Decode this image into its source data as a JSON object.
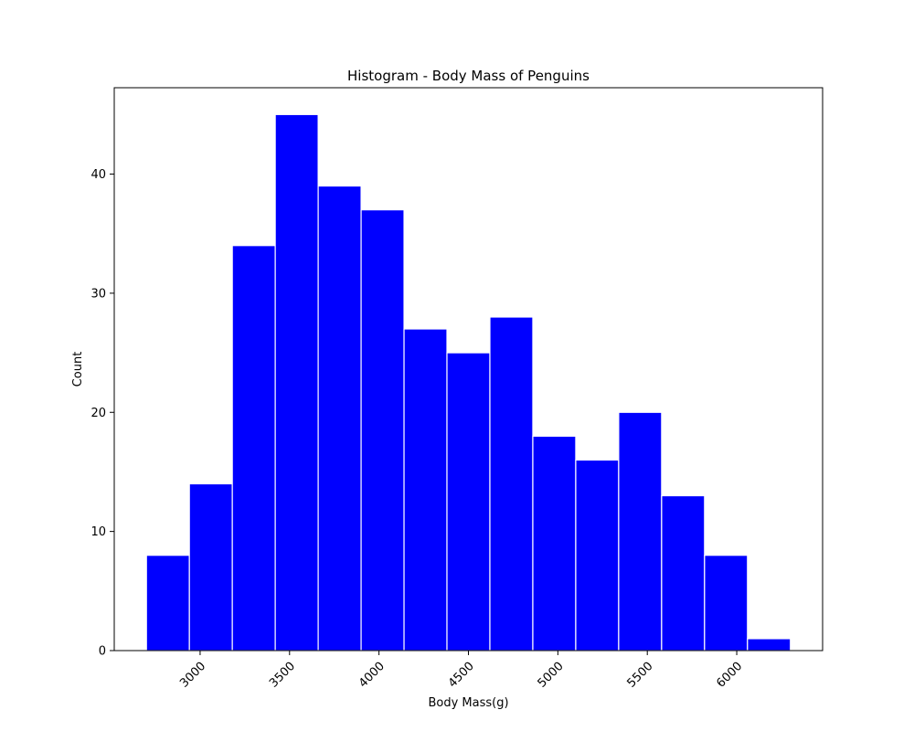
{
  "chart_data": {
    "type": "bar",
    "subtype": "histogram",
    "title": "Histogram - Body Mass of Penguins",
    "xlabel": "Body Mass(g)",
    "ylabel": "Count",
    "bins": [
      {
        "x0": 2700,
        "x1": 2940,
        "count": 8
      },
      {
        "x0": 2940,
        "x1": 3180,
        "count": 14
      },
      {
        "x0": 3180,
        "x1": 3420,
        "count": 34
      },
      {
        "x0": 3420,
        "x1": 3660,
        "count": 45
      },
      {
        "x0": 3660,
        "x1": 3900,
        "count": 39
      },
      {
        "x0": 3900,
        "x1": 4140,
        "count": 37
      },
      {
        "x0": 4140,
        "x1": 4380,
        "count": 27
      },
      {
        "x0": 4380,
        "x1": 4620,
        "count": 25
      },
      {
        "x0": 4620,
        "x1": 4860,
        "count": 28
      },
      {
        "x0": 4860,
        "x1": 5100,
        "count": 18
      },
      {
        "x0": 5100,
        "x1": 5340,
        "count": 16
      },
      {
        "x0": 5340,
        "x1": 5580,
        "count": 20
      },
      {
        "x0": 5580,
        "x1": 5820,
        "count": 13
      },
      {
        "x0": 5820,
        "x1": 6060,
        "count": 8
      },
      {
        "x0": 6060,
        "x1": 6300,
        "count": 1
      }
    ],
    "xticks": [
      3000,
      3500,
      4000,
      4500,
      5000,
      5500,
      6000
    ],
    "yticks": [
      0,
      10,
      20,
      30,
      40
    ],
    "xlim": [
      2520,
      6480
    ],
    "ylim": [
      0,
      47.25
    ],
    "bar_color": "#0000ff",
    "edge_color": "#ffffff",
    "grid": false
  }
}
